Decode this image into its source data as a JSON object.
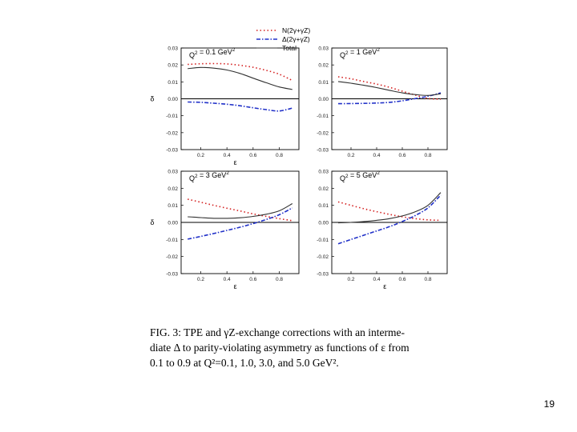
{
  "legend": {
    "entries": [
      {
        "label": "N(2γ+γZ)",
        "style": "dotted",
        "color": "#d42020"
      },
      {
        "label": "Δ(2γ+γZ)",
        "style": "dashdot",
        "color": "#2030c8"
      },
      {
        "label": "Total",
        "style": "solid",
        "color": "#303030"
      }
    ]
  },
  "chart_data": [
    {
      "type": "line",
      "title": "Q² = 0.1 GeV²",
      "xlabel": "ε",
      "ylabel": "δ",
      "xlim": [
        0.05,
        0.95
      ],
      "ylim": [
        -0.03,
        0.03
      ],
      "xticks": [
        "0.2",
        "0.4",
        "0.6",
        "0.8"
      ],
      "yticks": [
        "0.03",
        "0.02",
        "0.01",
        "0.00",
        "-0.01",
        "-0.02",
        "-0.03"
      ],
      "x": [
        0.1,
        0.2,
        0.3,
        0.4,
        0.5,
        0.6,
        0.7,
        0.8,
        0.9
      ],
      "series": [
        {
          "name": "N(2γ+γZ)",
          "values": [
            0.0203,
            0.0207,
            0.0208,
            0.0206,
            0.0198,
            0.0186,
            0.0168,
            0.0145,
            0.0108
          ]
        },
        {
          "name": "Δ(2γ+γZ)",
          "values": [
            -0.0019,
            -0.0021,
            -0.0026,
            -0.0032,
            -0.0041,
            -0.0053,
            -0.0064,
            -0.0072,
            -0.0055
          ]
        },
        {
          "name": "Total",
          "values": [
            0.0178,
            0.0185,
            0.0181,
            0.017,
            0.015,
            0.0122,
            0.0095,
            0.007,
            0.0055
          ]
        }
      ]
    },
    {
      "type": "line",
      "title": "Q² = 1 GeV²",
      "xlabel": "",
      "ylabel": "",
      "xlim": [
        0.05,
        0.95
      ],
      "ylim": [
        -0.03,
        0.03
      ],
      "xticks": [
        "0.2",
        "0.4",
        "0.6",
        "0.8"
      ],
      "yticks": [
        "0.03",
        "0.02",
        "0.01",
        "0.00",
        "-0.01",
        "-0.02",
        "-0.03"
      ],
      "x": [
        0.1,
        0.2,
        0.3,
        0.4,
        0.5,
        0.6,
        0.7,
        0.8,
        0.9
      ],
      "series": [
        {
          "name": "N(2γ+γZ)",
          "values": [
            0.013,
            0.0118,
            0.0102,
            0.0087,
            0.0068,
            0.0045,
            0.0022,
            0.0002,
            -0.0002
          ]
        },
        {
          "name": "Δ(2γ+γZ)",
          "values": [
            -0.0029,
            -0.0028,
            -0.0027,
            -0.0025,
            -0.0021,
            -0.0012,
            0.0001,
            0.0015,
            0.0035
          ]
        },
        {
          "name": "Total",
          "values": [
            0.0102,
            0.0092,
            0.008,
            0.0066,
            0.005,
            0.0035,
            0.0025,
            0.002,
            0.003
          ]
        }
      ]
    },
    {
      "type": "line",
      "title": "Q² = 3 GeV²",
      "xlabel": "ε",
      "ylabel": "δ",
      "xlim": [
        0.05,
        0.95
      ],
      "ylim": [
        -0.03,
        0.03
      ],
      "xticks": [
        "0.2",
        "0.4",
        "0.6",
        "0.8"
      ],
      "yticks": [
        "0.03",
        "0.02",
        "0.01",
        "0.00",
        "-0.01",
        "-0.02",
        "-0.03"
      ],
      "x": [
        0.1,
        0.2,
        0.3,
        0.4,
        0.5,
        0.6,
        0.7,
        0.8,
        0.9
      ],
      "series": [
        {
          "name": "N(2γ+γZ)",
          "values": [
            0.0136,
            0.0118,
            0.01,
            0.0083,
            0.0067,
            0.005,
            0.0035,
            0.0022,
            0.001
          ]
        },
        {
          "name": "Δ(2γ+γZ)",
          "values": [
            -0.0098,
            -0.0082,
            -0.0065,
            -0.0047,
            -0.0028,
            -0.0007,
            0.0017,
            0.0045,
            0.0085
          ]
        },
        {
          "name": "Total",
          "values": [
            0.0033,
            0.0028,
            0.0024,
            0.0024,
            0.0027,
            0.0035,
            0.0048,
            0.0068,
            0.011
          ]
        }
      ]
    },
    {
      "type": "line",
      "title": "Q² = 5 GeV²",
      "xlabel": "ε",
      "ylabel": "",
      "xlim": [
        0.05,
        0.95
      ],
      "ylim": [
        -0.03,
        0.03
      ],
      "xticks": [
        "0.2",
        "0.4",
        "0.6",
        "0.8"
      ],
      "yticks": [
        "0.03",
        "0.02",
        "0.01",
        "0.00",
        "-0.01",
        "-0.02",
        "-0.03"
      ],
      "x": [
        0.1,
        0.2,
        0.3,
        0.4,
        0.5,
        0.6,
        0.7,
        0.8,
        0.9
      ],
      "series": [
        {
          "name": "N(2γ+γZ)",
          "values": [
            0.012,
            0.01,
            0.008,
            0.0063,
            0.0047,
            0.0033,
            0.0022,
            0.0015,
            0.0012
          ]
        },
        {
          "name": "Δ(2γ+γZ)",
          "values": [
            -0.0125,
            -0.01,
            -0.0075,
            -0.005,
            -0.0025,
            0.0005,
            0.004,
            0.0085,
            0.016
          ]
        },
        {
          "name": "Total",
          "values": [
            -0.0003,
            0.0,
            0.0005,
            0.0012,
            0.0022,
            0.0038,
            0.0062,
            0.01,
            0.0175
          ]
        }
      ]
    }
  ],
  "caption": {
    "line1": "FIG. 3: TPE and γZ-exchange corrections with an interme-",
    "line2": "diate Δ to parity-violating asymmetry as functions of ε from",
    "line3": "0.1 to 0.9 at Q²=0.1, 1.0, 3.0, and 5.0 GeV²."
  },
  "slide_number": "19"
}
